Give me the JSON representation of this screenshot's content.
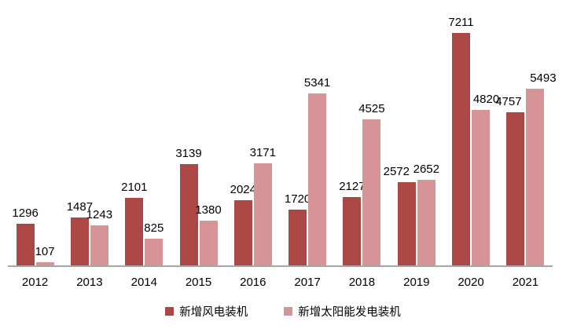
{
  "chart_data": {
    "type": "bar",
    "title": "",
    "categories": [
      "2012",
      "2013",
      "2014",
      "2015",
      "2016",
      "2017",
      "2018",
      "2019",
      "2020",
      "2021"
    ],
    "series": [
      {
        "id": "wind",
        "name": "新增风电装机",
        "color": "#AB4846",
        "values": [
          1296,
          1487,
          2101,
          3139,
          2024,
          1720,
          2127,
          2572,
          7211,
          4757
        ]
      },
      {
        "id": "solar",
        "name": "新增太阳能发电装机",
        "color": "#D79497",
        "values": [
          107,
          1243,
          825,
          1380,
          3171,
          5341,
          4525,
          2652,
          4820,
          5493
        ]
      }
    ],
    "legend_position": "bottom",
    "grid": false,
    "data_labels": true,
    "x_axis": {
      "line_color": "#A6A6A6",
      "label_color": "#000000"
    },
    "y_axis": {
      "visible": false,
      "ylim": [
        0,
        7600
      ]
    },
    "background": "#FFFFFF"
  }
}
